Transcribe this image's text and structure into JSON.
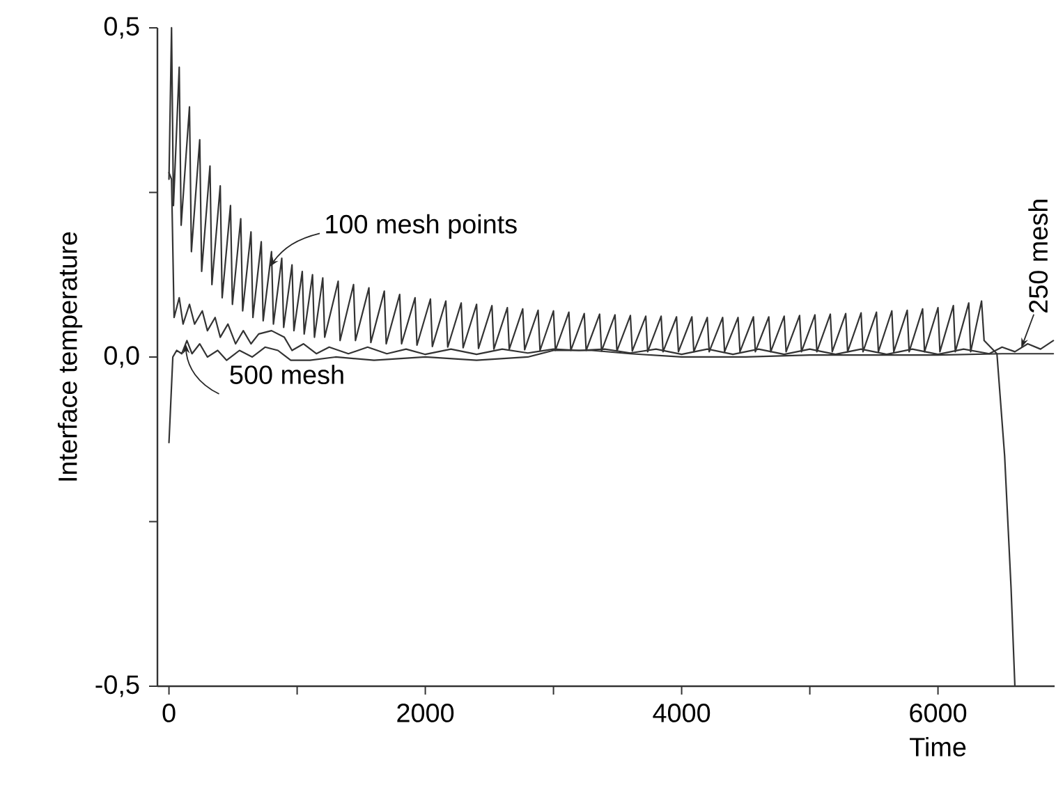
{
  "chart_data": {
    "type": "line",
    "xlabel": "Time",
    "ylabel": "Interface temperature",
    "xlim": [
      -90,
      6910
    ],
    "ylim": [
      -0.5,
      0.5
    ],
    "xticks": [
      0,
      {
        "value": 1000,
        "label": null
      },
      2000,
      {
        "value": 3000,
        "label": null
      },
      4000,
      {
        "value": 5000,
        "label": null
      },
      6000
    ],
    "yticks": [
      {
        "value": -0.5,
        "label": "-0,5"
      },
      {
        "value": -0.25,
        "label": null
      },
      {
        "value": 0,
        "label": "0,0"
      },
      {
        "value": 0.25,
        "label": null
      },
      {
        "value": 0.5,
        "label": "0,5"
      }
    ],
    "grid": false,
    "annotations": [
      {
        "text": "100 mesh points",
        "x": 785,
        "y": 0.137
      },
      {
        "text": "500 mesh",
        "x": 130,
        "y": 0.02
      },
      {
        "text": "250 mesh",
        "x": 6650,
        "y": 0.014
      }
    ],
    "series": [
      {
        "color": "#333333",
        "x": [
          0,
          20,
          35,
          80,
          95,
          160,
          175,
          240,
          255,
          320,
          335,
          400,
          415,
          480,
          495,
          560,
          575,
          640,
          655,
          720,
          735,
          800,
          815,
          880,
          895,
          960,
          975,
          1040,
          1055,
          1120,
          1135,
          1200,
          1215,
          1320,
          1335,
          1440,
          1455,
          1560,
          1575,
          1680,
          1695,
          1800,
          1815,
          1920,
          1935,
          2040,
          2055,
          2160,
          2175,
          2280,
          2295,
          2400,
          2415,
          2520,
          2535,
          2640,
          2655,
          2760,
          2775,
          2880,
          2895,
          3000,
          3015,
          3120,
          3135,
          3240,
          3255,
          3360,
          3375,
          3480,
          3495,
          3600,
          3615,
          3720,
          3735,
          3840,
          3855,
          3960,
          3975,
          4080,
          4095,
          4200,
          4215,
          4320,
          4335,
          4440,
          4455,
          4560,
          4575,
          4680,
          4695,
          4800,
          4815,
          4920,
          4935,
          5040,
          5055,
          5160,
          5175,
          5280,
          5295,
          5400,
          5415,
          5520,
          5535,
          5640,
          5655,
          5760,
          5775,
          5880,
          5895,
          6000,
          6015,
          6120,
          6135,
          6240,
          6255,
          6340,
          6360,
          6460,
          6520,
          6570,
          6600
        ],
        "values": [
          0.27,
          0.5,
          0.23,
          0.44,
          0.2,
          0.38,
          0.16,
          0.33,
          0.13,
          0.29,
          0.11,
          0.26,
          0.09,
          0.23,
          0.08,
          0.21,
          0.07,
          0.19,
          0.06,
          0.175,
          0.055,
          0.16,
          0.05,
          0.15,
          0.045,
          0.14,
          0.04,
          0.13,
          0.035,
          0.125,
          0.03,
          0.12,
          0.03,
          0.115,
          0.025,
          0.11,
          0.025,
          0.105,
          0.022,
          0.1,
          0.02,
          0.095,
          0.02,
          0.09,
          0.018,
          0.088,
          0.016,
          0.085,
          0.015,
          0.082,
          0.014,
          0.08,
          0.013,
          0.078,
          0.012,
          0.075,
          0.012,
          0.073,
          0.011,
          0.071,
          0.01,
          0.07,
          0.01,
          0.068,
          0.01,
          0.066,
          0.01,
          0.065,
          0.009,
          0.064,
          0.009,
          0.063,
          0.009,
          0.062,
          0.008,
          0.062,
          0.008,
          0.061,
          0.008,
          0.061,
          0.008,
          0.06,
          0.008,
          0.06,
          0.008,
          0.06,
          0.008,
          0.061,
          0.008,
          0.061,
          0.008,
          0.062,
          0.008,
          0.063,
          0.008,
          0.064,
          0.008,
          0.065,
          0.008,
          0.066,
          0.008,
          0.067,
          0.008,
          0.068,
          0.008,
          0.07,
          0.008,
          0.071,
          0.008,
          0.073,
          0.008,
          0.075,
          0.008,
          0.078,
          0.008,
          0.082,
          0.008,
          0.085,
          0.025,
          0.005,
          -0.15,
          -0.35,
          -0.5
        ]
      },
      {
        "color": "#333333",
        "x": [
          0,
          20,
          40,
          80,
          110,
          160,
          200,
          260,
          300,
          360,
          400,
          460,
          520,
          580,
          640,
          700,
          800,
          900,
          960,
          1050,
          1150,
          1250,
          1400,
          1550,
          1700,
          1850,
          2000,
          2200,
          2400,
          2600,
          2800,
          3000,
          3200,
          3400,
          3600,
          3800,
          4000,
          4200,
          4400,
          4600,
          4800,
          5000,
          5200,
          5400,
          5600,
          5800,
          6000,
          6200,
          6400,
          6500,
          6600,
          6700,
          6800,
          6900
        ],
        "values": [
          0.28,
          0.27,
          0.06,
          0.09,
          0.05,
          0.08,
          0.05,
          0.07,
          0.04,
          0.06,
          0.03,
          0.05,
          0.02,
          0.04,
          0.02,
          0.035,
          0.04,
          0.03,
          0.01,
          0.02,
          0.005,
          0.015,
          0.005,
          0.015,
          0.005,
          0.012,
          0.004,
          0.012,
          0.004,
          0.012,
          0.006,
          0.012,
          0.01,
          0.012,
          0.006,
          0.012,
          0.004,
          0.012,
          0.004,
          0.012,
          0.004,
          0.012,
          0.004,
          0.012,
          0.004,
          0.012,
          0.004,
          0.012,
          0.005,
          0.015,
          0.008,
          0.02,
          0.012,
          0.025
        ]
      },
      {
        "color": "#333333",
        "x": [
          0,
          30,
          60,
          100,
          140,
          180,
          240,
          300,
          380,
          450,
          550,
          650,
          750,
          850,
          950,
          1100,
          1300,
          1600,
          2000,
          2400,
          2800,
          3000,
          3300,
          3600,
          4000,
          4500,
          5000,
          5500,
          6000,
          6500,
          6900
        ],
        "values": [
          -0.13,
          0.0,
          0.01,
          0.005,
          0.025,
          0.005,
          0.02,
          0.0,
          0.01,
          -0.005,
          0.01,
          0.0,
          0.015,
          0.01,
          -0.005,
          -0.005,
          0.0,
          -0.005,
          0.0,
          -0.005,
          0.0,
          0.01,
          0.01,
          0.005,
          0.0,
          0.0,
          0.003,
          0.003,
          0.003,
          0.005,
          0.005
        ]
      }
    ]
  }
}
